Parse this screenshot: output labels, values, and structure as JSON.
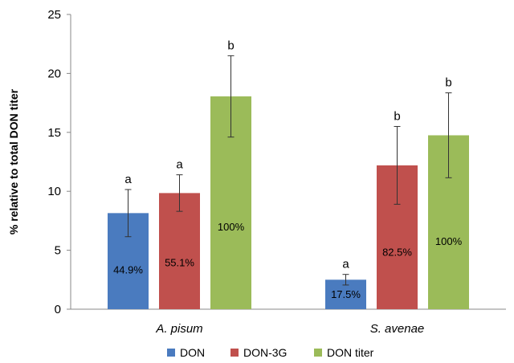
{
  "chart_data": {
    "type": "bar",
    "title": "",
    "xlabel": "",
    "ylabel": "% relative to total DON titer",
    "ylim": [
      0,
      25
    ],
    "yticks": [
      0,
      5,
      10,
      15,
      20,
      25
    ],
    "grid": false,
    "legend_position": "bottom",
    "categories": [
      "A. pisum",
      "S. avenae"
    ],
    "series": [
      {
        "name": "DON",
        "color": "#4a7bbf",
        "values": [
          8.15,
          2.5
        ],
        "error": [
          2.0,
          0.45
        ],
        "labels": [
          "44.9%",
          "17.5%"
        ],
        "significance": [
          "a",
          "a"
        ]
      },
      {
        "name": "DON-3G",
        "color": "#c0504d",
        "values": [
          9.85,
          12.2
        ],
        "error": [
          1.55,
          3.3
        ],
        "labels": [
          "55.1%",
          "82.5%"
        ],
        "significance": [
          "a",
          "b"
        ]
      },
      {
        "name": "DON titer",
        "color": "#9bbb59",
        "values": [
          18.05,
          14.75
        ],
        "error": [
          3.45,
          3.6
        ],
        "labels": [
          "100%",
          "100%"
        ],
        "significance": [
          "b",
          "b"
        ]
      }
    ]
  }
}
